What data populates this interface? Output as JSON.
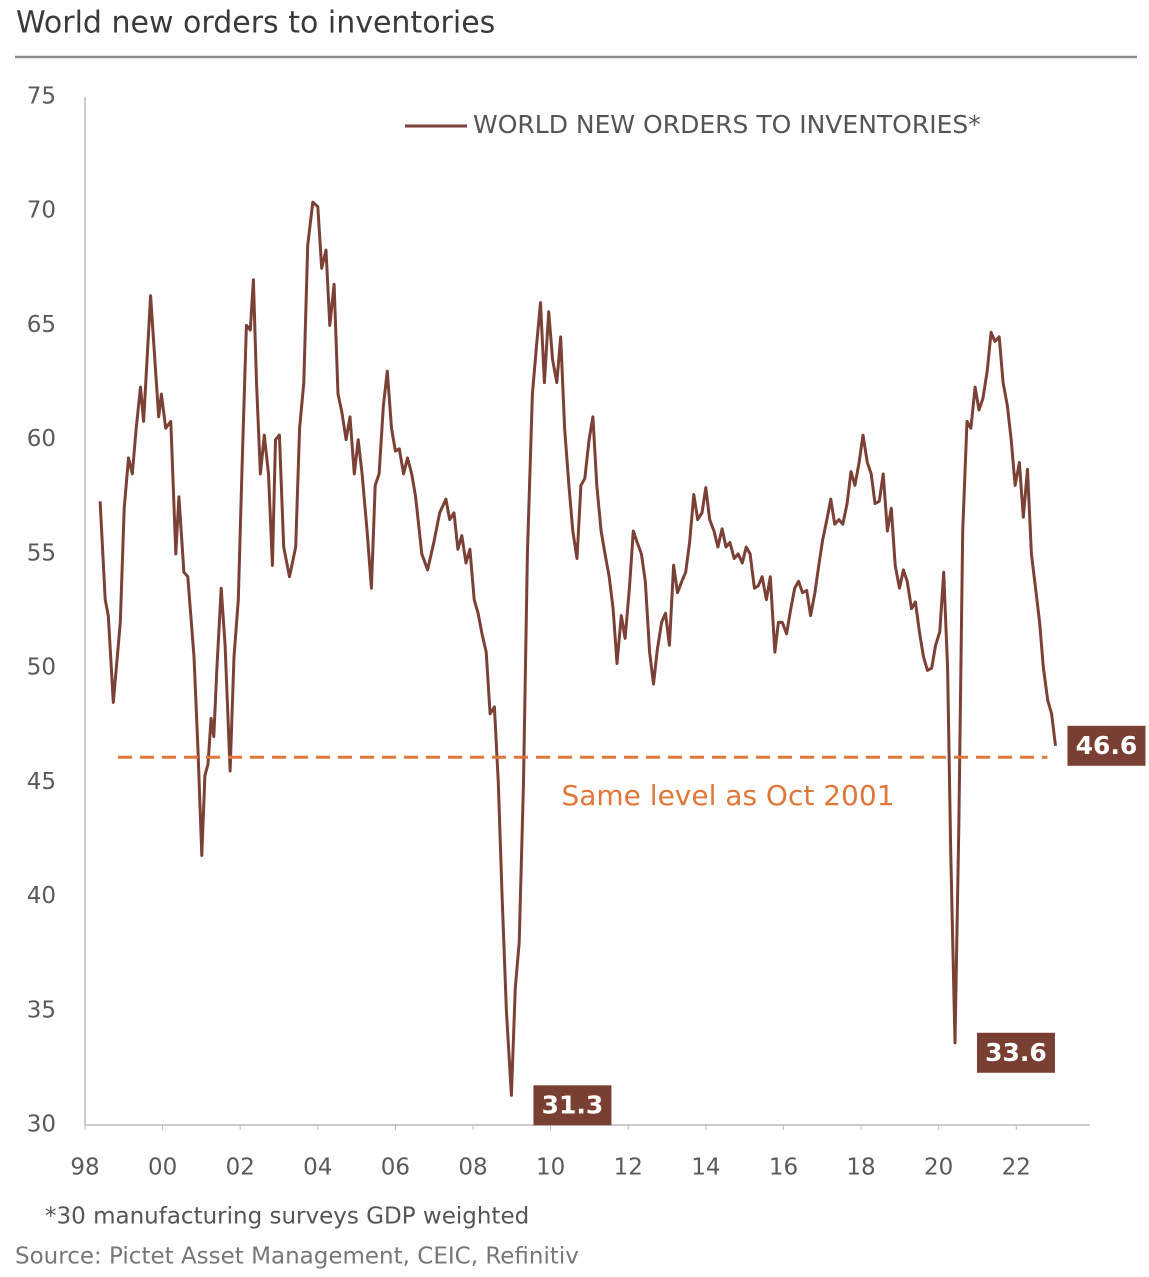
{
  "chart_data": {
    "type": "line",
    "title": "World new orders to inventories",
    "footnote": "*30 manufacturing surveys GDP weighted",
    "source": "Source: Pictet Asset Management, CEIC, Refinitiv",
    "xlim": [
      1998,
      2023.9
    ],
    "ylim": [
      30,
      75
    ],
    "yticks": [
      30,
      35,
      40,
      45,
      50,
      55,
      60,
      65,
      70,
      75
    ],
    "xticks": [
      {
        "value": 1998,
        "label": "98"
      },
      {
        "value": 2000,
        "label": "00"
      },
      {
        "value": 2002,
        "label": "02"
      },
      {
        "value": 2004,
        "label": "04"
      },
      {
        "value": 2006,
        "label": "06"
      },
      {
        "value": 2008,
        "label": "08"
      },
      {
        "value": 2010,
        "label": "10"
      },
      {
        "value": 2012,
        "label": "12"
      },
      {
        "value": 2014,
        "label": "14"
      },
      {
        "value": 2016,
        "label": "16"
      },
      {
        "value": 2018,
        "label": "18"
      },
      {
        "value": 2020,
        "label": "20"
      },
      {
        "value": 2022,
        "label": "22"
      }
    ],
    "grid": false,
    "legend": "top-right",
    "reference_line": {
      "value": 46.1,
      "label": "Same level as Oct 2001",
      "color": "#e0773a"
    },
    "annotation_color": "#7a3f33",
    "x": [
      1998.39,
      1998.52,
      1998.6,
      1998.73,
      1998.91,
      1999.01,
      1999.12,
      1999.22,
      1999.32,
      1999.43,
      1999.51,
      1999.69,
      1999.82,
      1999.9,
      1999.97,
      2000.08,
      2000.21,
      2000.34,
      2000.42,
      2000.55,
      2000.65,
      2000.81,
      2000.91,
      2001.01,
      2001.09,
      2001.17,
      2001.25,
      2001.32,
      2001.4,
      2001.51,
      2001.61,
      2001.74,
      2001.84,
      2001.95,
      2002.05,
      2002.16,
      2002.26,
      2002.34,
      2002.42,
      2002.52,
      2002.62,
      2002.73,
      2002.83,
      2002.91,
      2003.01,
      2003.12,
      2003.27,
      2003.43,
      2003.53,
      2003.64,
      2003.74,
      2003.87,
      2004.0,
      2004.1,
      2004.21,
      2004.31,
      2004.42,
      2004.52,
      2004.62,
      2004.73,
      2004.83,
      2004.94,
      2005.04,
      2005.14,
      2005.27,
      2005.38,
      2005.48,
      2005.58,
      2005.69,
      2005.79,
      2005.9,
      2006.0,
      2006.1,
      2006.21,
      2006.31,
      2006.42,
      2006.52,
      2006.68,
      2006.83,
      2006.99,
      2007.14,
      2007.3,
      2007.4,
      2007.51,
      2007.61,
      2007.71,
      2007.82,
      2007.92,
      2008.03,
      2008.13,
      2008.23,
      2008.34,
      2008.44,
      2008.55,
      2008.65,
      2008.75,
      2008.86,
      2008.99,
      2009.09,
      2009.19,
      2009.3,
      2009.4,
      2009.53,
      2009.64,
      2009.74,
      2009.84,
      2009.95,
      2010.05,
      2010.16,
      2010.26,
      2010.36,
      2010.47,
      2010.57,
      2010.68,
      2010.78,
      2010.88,
      2010.99,
      2011.09,
      2011.19,
      2011.3,
      2011.4,
      2011.51,
      2011.61,
      2011.71,
      2011.82,
      2011.92,
      2012.03,
      2012.13,
      2012.23,
      2012.34,
      2012.44,
      2012.55,
      2012.65,
      2012.75,
      2012.86,
      2012.96,
      2013.06,
      2013.17,
      2013.27,
      2013.38,
      2013.48,
      2013.58,
      2013.69,
      2013.79,
      2013.9,
      2014.0,
      2014.1,
      2014.21,
      2014.31,
      2014.42,
      2014.52,
      2014.62,
      2014.73,
      2014.83,
      2014.94,
      2015.04,
      2015.14,
      2015.25,
      2015.35,
      2015.45,
      2015.56,
      2015.66,
      2015.78,
      2015.87,
      2015.97,
      2016.08,
      2016.18,
      2016.29,
      2016.39,
      2016.49,
      2016.6,
      2016.7,
      2016.81,
      2016.91,
      2017.01,
      2017.12,
      2017.22,
      2017.32,
      2017.43,
      2017.53,
      2017.64,
      2017.74,
      2017.84,
      2017.95,
      2018.05,
      2018.16,
      2018.26,
      2018.36,
      2018.47,
      2018.57,
      2018.68,
      2018.78,
      2018.88,
      2018.99,
      2019.09,
      2019.19,
      2019.3,
      2019.4,
      2019.51,
      2019.61,
      2019.71,
      2019.82,
      2019.92,
      2020.03,
      2020.13,
      2020.23,
      2020.31,
      2020.42,
      2020.52,
      2020.62,
      2020.73,
      2020.83,
      2020.94,
      2021.04,
      2021.14,
      2021.25,
      2021.35,
      2021.45,
      2021.56,
      2021.66,
      2021.77,
      2021.87,
      2021.97,
      2022.08,
      2022.18,
      2022.29,
      2022.39,
      2022.49,
      2022.6,
      2022.7,
      2022.81,
      2022.91,
      2023.01
    ],
    "series": [
      {
        "name": "WORLD NEW ORDERS TO INVENTORIES*",
        "color": "#7b4136",
        "values": [
          57.3,
          53,
          52.3,
          48.5,
          52,
          57,
          59.2,
          58.5,
          60.5,
          62.3,
          60.8,
          66.3,
          63,
          61,
          62,
          60.5,
          60.8,
          55,
          57.5,
          54.2,
          54,
          50.5,
          46.5,
          41.8,
          45.3,
          45.8,
          47.8,
          47,
          50,
          53.5,
          51,
          45.5,
          50.5,
          53,
          59,
          65,
          64.8,
          67,
          62.5,
          58.5,
          60.2,
          58.5,
          54.5,
          60,
          60.2,
          55.3,
          54,
          55.3,
          60.5,
          62.5,
          68.5,
          70.4,
          70.2,
          67.5,
          68.3,
          65,
          66.8,
          62,
          61.2,
          60,
          61,
          58.5,
          60,
          58.5,
          56,
          53.5,
          58,
          58.5,
          61.5,
          63,
          60.5,
          59.5,
          59.6,
          58.5,
          59.2,
          58.5,
          57.5,
          55,
          54.3,
          55.5,
          56.8,
          57.4,
          56.5,
          56.8,
          55.2,
          55.8,
          54.6,
          55.2,
          53,
          52.4,
          51.5,
          50.7,
          48,
          48.3,
          45,
          40,
          35,
          31.3,
          36,
          38,
          45,
          55,
          62,
          64.2,
          66,
          62.5,
          65.6,
          63.5,
          62.5,
          64.5,
          60.5,
          58,
          56,
          54.8,
          58,
          58.3,
          60,
          61,
          58,
          56,
          55,
          54,
          52.6,
          50.2,
          52.3,
          51.3,
          53.5,
          56,
          55.5,
          55,
          53.8,
          50.7,
          49.3,
          50.8,
          52,
          52.4,
          51,
          54.5,
          53.3,
          53.8,
          54.2,
          55.5,
          57.6,
          56.5,
          56.8,
          57.9,
          56.5,
          56,
          55.3,
          56.1,
          55.3,
          55.5,
          54.8,
          55,
          54.6,
          55.3,
          55,
          53.5,
          53.6,
          54,
          53,
          54,
          50.7,
          52,
          52,
          51.5,
          52.5,
          53.5,
          53.8,
          53.3,
          53.4,
          52.3,
          53.3,
          54.5,
          55.6,
          56.5,
          57.4,
          56.3,
          56.5,
          56.3,
          57.2,
          58.6,
          58,
          59,
          60.2,
          59,
          58.5,
          57.2,
          57.3,
          58.5,
          56,
          57,
          54.5,
          53.5,
          54.3,
          53.8,
          52.6,
          52.9,
          51.5,
          50.5,
          49.9,
          50,
          51,
          51.6,
          54.2,
          50,
          42,
          33.6,
          43,
          56,
          60.8,
          60.5,
          62.3,
          61.3,
          61.8,
          63,
          64.7,
          64.3,
          64.5,
          62.5,
          61.5,
          60,
          58,
          59,
          56.6,
          58.7,
          55,
          53.6,
          52,
          50,
          48.6,
          48,
          46.6
        ]
      }
    ]
  }
}
